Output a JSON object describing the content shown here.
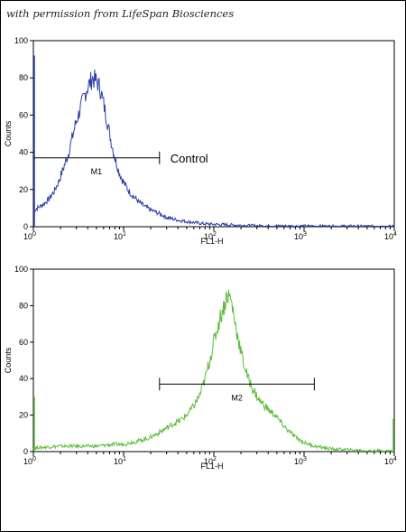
{
  "credit_text": "with permission from LifeSpan Biosciences",
  "chart_data": [
    {
      "type": "line",
      "name": "control-histogram",
      "color": "#2a3fa8",
      "xlabel": "FL1-H",
      "ylabel": "Counts",
      "xscale": "log",
      "xlim": [
        1,
        10000
      ],
      "ylim": [
        0,
        100
      ],
      "x_ticks": [
        {
          "value": 1,
          "base": "10",
          "exp": "0"
        },
        {
          "value": 10,
          "base": "10",
          "exp": "1"
        },
        {
          "value": 100,
          "base": "10",
          "exp": "2"
        },
        {
          "value": 1000,
          "base": "10",
          "exp": "3"
        },
        {
          "value": 10000,
          "base": "10",
          "exp": "4"
        }
      ],
      "y_ticks": [
        "0",
        "20",
        "40",
        "60",
        "80",
        "100"
      ],
      "gate": {
        "label": "M1",
        "x_start": 1,
        "x_end": 25,
        "y": 37
      },
      "annotation": "Control",
      "points": [
        [
          1,
          8
        ],
        [
          1.1,
          10
        ],
        [
          1.2,
          11
        ],
        [
          1.35,
          13
        ],
        [
          1.5,
          15
        ],
        [
          1.7,
          19
        ],
        [
          1.9,
          24
        ],
        [
          2.1,
          30
        ],
        [
          2.4,
          38
        ],
        [
          2.7,
          48
        ],
        [
          3.0,
          57
        ],
        [
          3.3,
          63
        ],
        [
          3.6,
          69
        ],
        [
          3.9,
          74
        ],
        [
          4.2,
          77
        ],
        [
          4.5,
          80
        ],
        [
          4.8,
          79
        ],
        [
          5.2,
          77
        ],
        [
          5.6,
          73
        ],
        [
          6.0,
          66
        ],
        [
          6.5,
          58
        ],
        [
          7.0,
          50
        ],
        [
          7.5,
          43
        ],
        [
          8.0,
          37
        ],
        [
          8.7,
          31
        ],
        [
          9.5,
          26
        ],
        [
          10.5,
          22
        ],
        [
          11.5,
          19
        ],
        [
          13,
          16
        ],
        [
          15,
          13
        ],
        [
          17,
          11
        ],
        [
          20,
          9
        ],
        [
          25,
          7
        ],
        [
          30,
          5
        ],
        [
          40,
          3.5
        ],
        [
          55,
          2.5
        ],
        [
          80,
          1.5
        ],
        [
          150,
          1
        ],
        [
          300,
          0.5
        ],
        [
          1000,
          0.3
        ],
        [
          10000,
          0.2
        ]
      ]
    },
    {
      "type": "line",
      "name": "sample-histogram",
      "color": "#5cbd3c",
      "xlabel": "FL1-H",
      "ylabel": "Counts",
      "xscale": "log",
      "xlim": [
        1,
        10000
      ],
      "ylim": [
        0,
        100
      ],
      "x_ticks": [
        {
          "value": 1,
          "base": "10",
          "exp": "0"
        },
        {
          "value": 10,
          "base": "10",
          "exp": "1"
        },
        {
          "value": 100,
          "base": "10",
          "exp": "2"
        },
        {
          "value": 1000,
          "base": "10",
          "exp": "3"
        },
        {
          "value": 10000,
          "base": "10",
          "exp": "4"
        }
      ],
      "y_ticks": [
        "0",
        "20",
        "40",
        "60",
        "80",
        "100"
      ],
      "gate": {
        "label": "M2",
        "x_start": 25,
        "x_end": 1300,
        "y": 37
      },
      "annotation": "",
      "points": [
        [
          1,
          2
        ],
        [
          2,
          3
        ],
        [
          3,
          3
        ],
        [
          5,
          3
        ],
        [
          8,
          4
        ],
        [
          10,
          4
        ],
        [
          12,
          5
        ],
        [
          15,
          6
        ],
        [
          18,
          7
        ],
        [
          22,
          9
        ],
        [
          26,
          11
        ],
        [
          30,
          13
        ],
        [
          35,
          15
        ],
        [
          42,
          17
        ],
        [
          50,
          20
        ],
        [
          60,
          25
        ],
        [
          70,
          31
        ],
        [
          80,
          40
        ],
        [
          90,
          50
        ],
        [
          100,
          60
        ],
        [
          110,
          68
        ],
        [
          120,
          75
        ],
        [
          130,
          80
        ],
        [
          140,
          86
        ],
        [
          150,
          85
        ],
        [
          160,
          80
        ],
        [
          170,
          72
        ],
        [
          190,
          60
        ],
        [
          210,
          50
        ],
        [
          240,
          40
        ],
        [
          280,
          33
        ],
        [
          320,
          28
        ],
        [
          370,
          25
        ],
        [
          420,
          22
        ],
        [
          480,
          20
        ],
        [
          550,
          16
        ],
        [
          650,
          12
        ],
        [
          800,
          8
        ],
        [
          1000,
          5
        ],
        [
          1300,
          3
        ],
        [
          2000,
          1.5
        ],
        [
          3000,
          1
        ],
        [
          5000,
          0.5
        ],
        [
          10000,
          0.3
        ]
      ]
    }
  ]
}
